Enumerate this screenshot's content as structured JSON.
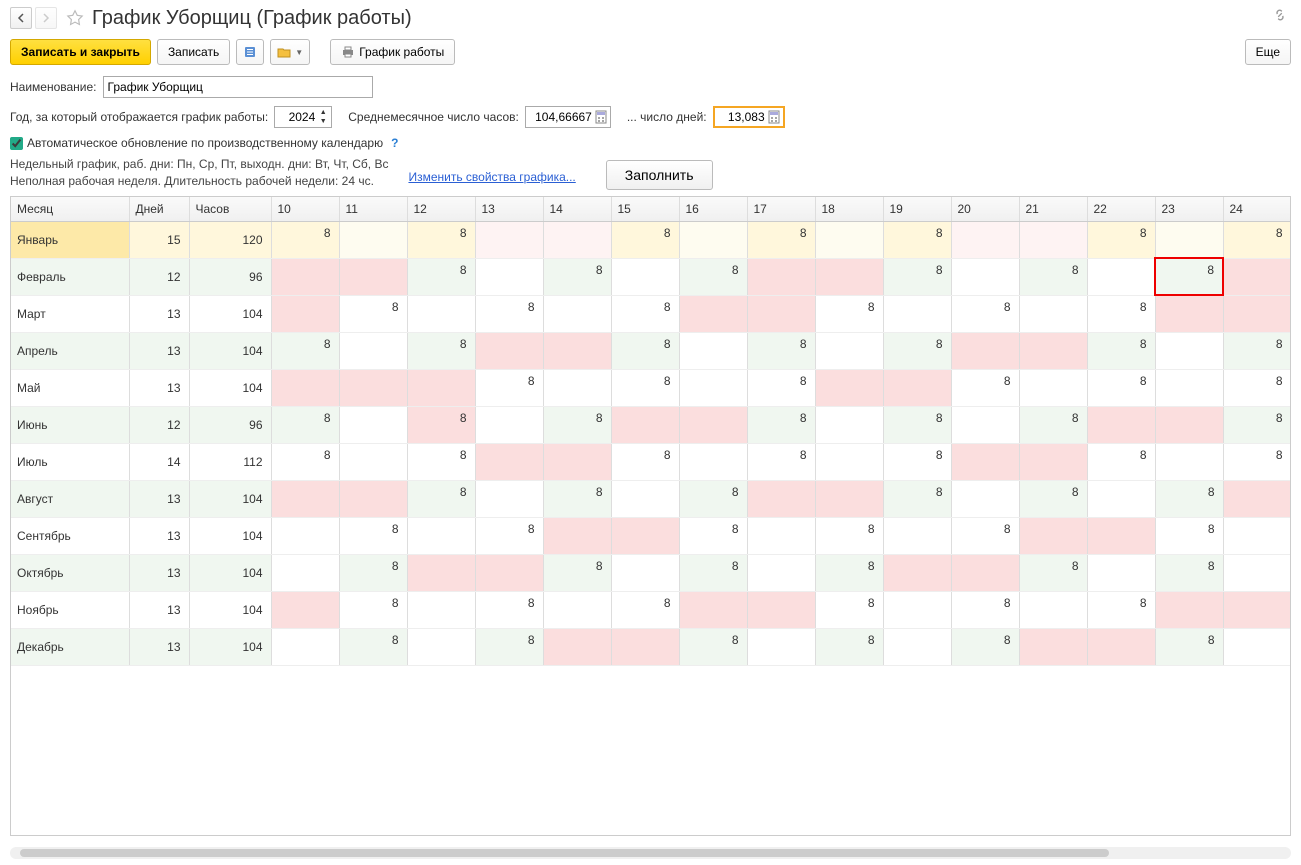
{
  "title": "График Уборщиц (График работы)",
  "toolbar": {
    "save_close": "Записать и закрыть",
    "save": "Записать",
    "schedule": "График работы",
    "more": "Еще"
  },
  "fields": {
    "name_label": "Наименование:",
    "name_value": "График Уборщиц",
    "year_label": "Год, за который отображается график работы:",
    "year_value": "2024",
    "avg_hours_label": "Среднемесячное число часов:",
    "avg_hours_value": "104,66667",
    "avg_days_label": "... число дней:",
    "avg_days_value": "13,083",
    "auto_update_label": "Автоматическое обновление по производственному календарю",
    "auto_update_checked": true,
    "desc_line1": "Недельный график, раб. дни: Пн, Ср, Пт, выходн. дни: Вт, Чт, Сб, Вс",
    "desc_line2": "Неполная рабочая неделя. Длительность рабочей недели: 24 чс.",
    "change_props_link": "Изменить свойства графика...",
    "fill_button": "Заполнить"
  },
  "table": {
    "headers": {
      "month": "Месяц",
      "days": "Дней",
      "hours": "Часов"
    },
    "day_columns": [
      10,
      11,
      12,
      13,
      14,
      15,
      16,
      17,
      18,
      19,
      20,
      21,
      22,
      23,
      24
    ],
    "rows": [
      {
        "month": "Январь",
        "days": 15,
        "hours": 120,
        "selected": true,
        "cells": [
          {
            "v": 8,
            "bg": "yl"
          },
          {
            "v": "",
            "bg": "yvl"
          },
          {
            "v": 8,
            "bg": "yl"
          },
          {
            "v": "",
            "bg": "pvl"
          },
          {
            "v": "",
            "bg": "pvl"
          },
          {
            "v": 8,
            "bg": "yl"
          },
          {
            "v": "",
            "bg": "yvl"
          },
          {
            "v": 8,
            "bg": "yl"
          },
          {
            "v": "",
            "bg": "yvl"
          },
          {
            "v": 8,
            "bg": "yl"
          },
          {
            "v": "",
            "bg": "pvl"
          },
          {
            "v": "",
            "bg": "pvl"
          },
          {
            "v": 8,
            "bg": "yl"
          },
          {
            "v": "",
            "bg": "yvl"
          },
          {
            "v": 8,
            "bg": "yl"
          }
        ]
      },
      {
        "month": "Февраль",
        "days": 12,
        "hours": 96,
        "cells": [
          {
            "v": "",
            "bg": "p"
          },
          {
            "v": "",
            "bg": "p"
          },
          {
            "v": 8,
            "bg": "g"
          },
          {
            "v": "",
            "bg": ""
          },
          {
            "v": 8,
            "bg": "g"
          },
          {
            "v": "",
            "bg": ""
          },
          {
            "v": 8,
            "bg": "g"
          },
          {
            "v": "",
            "bg": "p"
          },
          {
            "v": "",
            "bg": "p"
          },
          {
            "v": 8,
            "bg": "g"
          },
          {
            "v": "",
            "bg": ""
          },
          {
            "v": 8,
            "bg": "g"
          },
          {
            "v": "",
            "bg": ""
          },
          {
            "v": 8,
            "bg": "g",
            "sel": true
          },
          {
            "v": "",
            "bg": "p"
          }
        ]
      },
      {
        "month": "Март",
        "days": 13,
        "hours": 104,
        "cells": [
          {
            "v": "",
            "bg": "p"
          },
          {
            "v": 8,
            "bg": ""
          },
          {
            "v": "",
            "bg": ""
          },
          {
            "v": 8,
            "bg": ""
          },
          {
            "v": "",
            "bg": ""
          },
          {
            "v": 8,
            "bg": ""
          },
          {
            "v": "",
            "bg": "p"
          },
          {
            "v": "",
            "bg": "p"
          },
          {
            "v": 8,
            "bg": ""
          },
          {
            "v": "",
            "bg": ""
          },
          {
            "v": 8,
            "bg": ""
          },
          {
            "v": "",
            "bg": ""
          },
          {
            "v": 8,
            "bg": ""
          },
          {
            "v": "",
            "bg": "p"
          },
          {
            "v": "",
            "bg": "p"
          }
        ]
      },
      {
        "month": "Апрель",
        "days": 13,
        "hours": 104,
        "cells": [
          {
            "v": 8,
            "bg": "g"
          },
          {
            "v": "",
            "bg": ""
          },
          {
            "v": 8,
            "bg": "g"
          },
          {
            "v": "",
            "bg": "p"
          },
          {
            "v": "",
            "bg": "p"
          },
          {
            "v": 8,
            "bg": "g"
          },
          {
            "v": "",
            "bg": ""
          },
          {
            "v": 8,
            "bg": "g"
          },
          {
            "v": "",
            "bg": ""
          },
          {
            "v": 8,
            "bg": "g"
          },
          {
            "v": "",
            "bg": "p"
          },
          {
            "v": "",
            "bg": "p"
          },
          {
            "v": 8,
            "bg": "g"
          },
          {
            "v": "",
            "bg": ""
          },
          {
            "v": 8,
            "bg": "g"
          }
        ]
      },
      {
        "month": "Май",
        "days": 13,
        "hours": 104,
        "cells": [
          {
            "v": "",
            "bg": "p"
          },
          {
            "v": "",
            "bg": "p"
          },
          {
            "v": "",
            "bg": "p"
          },
          {
            "v": 8,
            "bg": ""
          },
          {
            "v": "",
            "bg": ""
          },
          {
            "v": 8,
            "bg": ""
          },
          {
            "v": "",
            "bg": ""
          },
          {
            "v": 8,
            "bg": ""
          },
          {
            "v": "",
            "bg": "p"
          },
          {
            "v": "",
            "bg": "p"
          },
          {
            "v": 8,
            "bg": ""
          },
          {
            "v": "",
            "bg": ""
          },
          {
            "v": 8,
            "bg": ""
          },
          {
            "v": "",
            "bg": ""
          },
          {
            "v": 8,
            "bg": ""
          }
        ]
      },
      {
        "month": "Июнь",
        "days": 12,
        "hours": 96,
        "cells": [
          {
            "v": 8,
            "bg": "g"
          },
          {
            "v": "",
            "bg": ""
          },
          {
            "v": 8,
            "bg": "p"
          },
          {
            "v": "",
            "bg": ""
          },
          {
            "v": 8,
            "bg": "g"
          },
          {
            "v": "",
            "bg": "p"
          },
          {
            "v": "",
            "bg": "p"
          },
          {
            "v": 8,
            "bg": "g"
          },
          {
            "v": "",
            "bg": ""
          },
          {
            "v": 8,
            "bg": "g"
          },
          {
            "v": "",
            "bg": ""
          },
          {
            "v": 8,
            "bg": "g"
          },
          {
            "v": "",
            "bg": "p"
          },
          {
            "v": "",
            "bg": "p"
          },
          {
            "v": 8,
            "bg": "g"
          }
        ]
      },
      {
        "month": "Июль",
        "days": 14,
        "hours": 112,
        "cells": [
          {
            "v": 8,
            "bg": ""
          },
          {
            "v": "",
            "bg": ""
          },
          {
            "v": 8,
            "bg": ""
          },
          {
            "v": "",
            "bg": "p"
          },
          {
            "v": "",
            "bg": "p"
          },
          {
            "v": 8,
            "bg": ""
          },
          {
            "v": "",
            "bg": ""
          },
          {
            "v": 8,
            "bg": ""
          },
          {
            "v": "",
            "bg": ""
          },
          {
            "v": 8,
            "bg": ""
          },
          {
            "v": "",
            "bg": "p"
          },
          {
            "v": "",
            "bg": "p"
          },
          {
            "v": 8,
            "bg": ""
          },
          {
            "v": "",
            "bg": ""
          },
          {
            "v": 8,
            "bg": ""
          }
        ]
      },
      {
        "month": "Август",
        "days": 13,
        "hours": 104,
        "cells": [
          {
            "v": "",
            "bg": "p"
          },
          {
            "v": "",
            "bg": "p"
          },
          {
            "v": 8,
            "bg": "g"
          },
          {
            "v": "",
            "bg": ""
          },
          {
            "v": 8,
            "bg": "g"
          },
          {
            "v": "",
            "bg": ""
          },
          {
            "v": 8,
            "bg": "g"
          },
          {
            "v": "",
            "bg": "p"
          },
          {
            "v": "",
            "bg": "p"
          },
          {
            "v": 8,
            "bg": "g"
          },
          {
            "v": "",
            "bg": ""
          },
          {
            "v": 8,
            "bg": "g"
          },
          {
            "v": "",
            "bg": ""
          },
          {
            "v": 8,
            "bg": "g"
          },
          {
            "v": "",
            "bg": "p"
          }
        ]
      },
      {
        "month": "Сентябрь",
        "days": 13,
        "hours": 104,
        "cells": [
          {
            "v": "",
            "bg": ""
          },
          {
            "v": 8,
            "bg": ""
          },
          {
            "v": "",
            "bg": ""
          },
          {
            "v": 8,
            "bg": ""
          },
          {
            "v": "",
            "bg": "p"
          },
          {
            "v": "",
            "bg": "p"
          },
          {
            "v": 8,
            "bg": ""
          },
          {
            "v": "",
            "bg": ""
          },
          {
            "v": 8,
            "bg": ""
          },
          {
            "v": "",
            "bg": ""
          },
          {
            "v": 8,
            "bg": ""
          },
          {
            "v": "",
            "bg": "p"
          },
          {
            "v": "",
            "bg": "p"
          },
          {
            "v": 8,
            "bg": ""
          },
          {
            "v": "",
            "bg": ""
          }
        ]
      },
      {
        "month": "Октябрь",
        "days": 13,
        "hours": 104,
        "cells": [
          {
            "v": "",
            "bg": ""
          },
          {
            "v": 8,
            "bg": "g"
          },
          {
            "v": "",
            "bg": "p"
          },
          {
            "v": "",
            "bg": "p"
          },
          {
            "v": 8,
            "bg": "g"
          },
          {
            "v": "",
            "bg": ""
          },
          {
            "v": 8,
            "bg": "g"
          },
          {
            "v": "",
            "bg": ""
          },
          {
            "v": 8,
            "bg": "g"
          },
          {
            "v": "",
            "bg": "p"
          },
          {
            "v": "",
            "bg": "p"
          },
          {
            "v": 8,
            "bg": "g"
          },
          {
            "v": "",
            "bg": ""
          },
          {
            "v": 8,
            "bg": "g"
          },
          {
            "v": "",
            "bg": ""
          }
        ]
      },
      {
        "month": "Ноябрь",
        "days": 13,
        "hours": 104,
        "cells": [
          {
            "v": "",
            "bg": "p"
          },
          {
            "v": 8,
            "bg": ""
          },
          {
            "v": "",
            "bg": ""
          },
          {
            "v": 8,
            "bg": ""
          },
          {
            "v": "",
            "bg": ""
          },
          {
            "v": 8,
            "bg": ""
          },
          {
            "v": "",
            "bg": "p"
          },
          {
            "v": "",
            "bg": "p"
          },
          {
            "v": 8,
            "bg": ""
          },
          {
            "v": "",
            "bg": ""
          },
          {
            "v": 8,
            "bg": ""
          },
          {
            "v": "",
            "bg": ""
          },
          {
            "v": 8,
            "bg": ""
          },
          {
            "v": "",
            "bg": "p"
          },
          {
            "v": "",
            "bg": "p"
          }
        ]
      },
      {
        "month": "Декабрь",
        "days": 13,
        "hours": 104,
        "cells": [
          {
            "v": "",
            "bg": ""
          },
          {
            "v": 8,
            "bg": "g"
          },
          {
            "v": "",
            "bg": ""
          },
          {
            "v": 8,
            "bg": "g"
          },
          {
            "v": "",
            "bg": "p"
          },
          {
            "v": "",
            "bg": "p"
          },
          {
            "v": 8,
            "bg": "g"
          },
          {
            "v": "",
            "bg": ""
          },
          {
            "v": 8,
            "bg": "g"
          },
          {
            "v": "",
            "bg": ""
          },
          {
            "v": 8,
            "bg": "g"
          },
          {
            "v": "",
            "bg": "p"
          },
          {
            "v": "",
            "bg": "p"
          },
          {
            "v": 8,
            "bg": "g"
          },
          {
            "v": "",
            "bg": ""
          }
        ]
      }
    ]
  },
  "colors": {
    "yellow_dark": "#fde9a8",
    "yellow_light": "#fff7dc",
    "yellow_vlight": "#fefcf0",
    "green_light": "#f0f7f0",
    "pink": "#fbdede",
    "pink_vlight": "#fef3f3",
    "selected_border": "#e00000"
  }
}
